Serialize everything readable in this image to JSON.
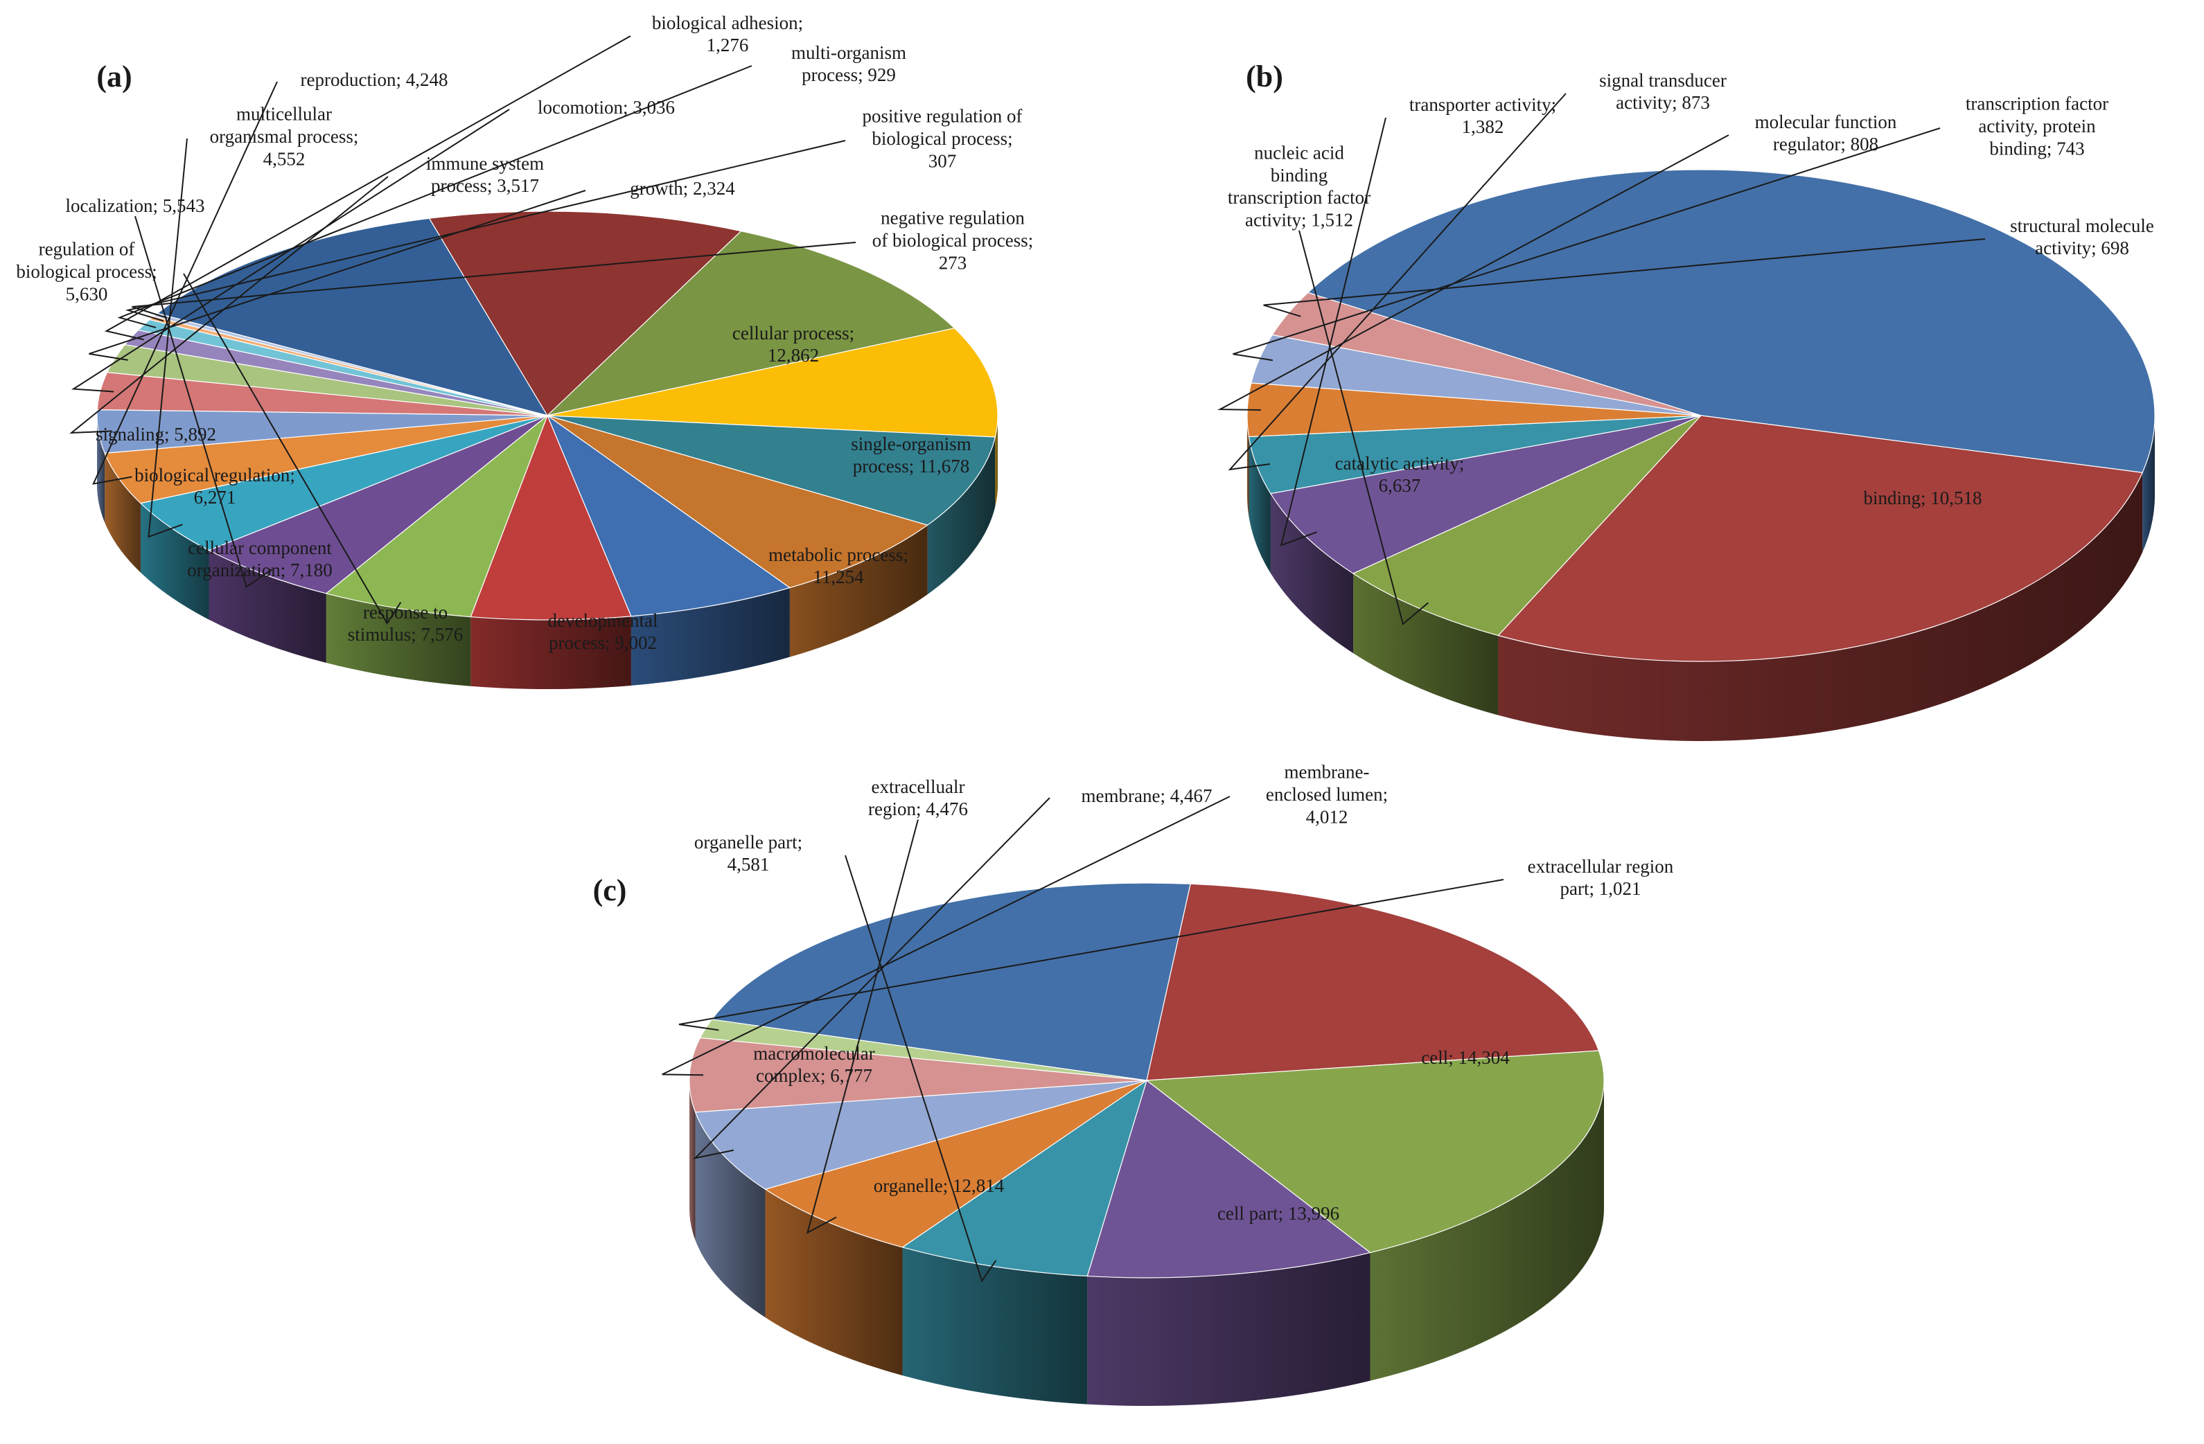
{
  "chart_data": [
    {
      "type": "pie",
      "panel_label": "(a)",
      "slices": [
        {
          "label": "cellular process",
          "value": 12862,
          "color": "#335f96"
        },
        {
          "label": "single-organism process",
          "value": 11678,
          "color": "#8e3431"
        },
        {
          "label": "metabolic process",
          "value": 11254,
          "color": "#7a9544"
        },
        {
          "label": "developmental process",
          "value": 9002,
          "color": "#fbbd05"
        },
        {
          "label": "response to stimulus",
          "value": 7576,
          "color": "#33808f"
        },
        {
          "label": "cellular component organization",
          "value": 7180,
          "color": "#c6752c"
        },
        {
          "label": "biological regulation",
          "value": 6271,
          "color": "#3f6fb1"
        },
        {
          "label": "signaling",
          "value": 5892,
          "color": "#bf3e3c"
        },
        {
          "label": "regulation of biological process",
          "value": 5630,
          "color": "#8db752"
        },
        {
          "label": "localization",
          "value": 5543,
          "color": "#6e4d92"
        },
        {
          "label": "multicellular organismal process",
          "value": 4552,
          "color": "#38a5c0"
        },
        {
          "label": "reproduction",
          "value": 4248,
          "color": "#e58b3c"
        },
        {
          "label": "immune system process",
          "value": 3517,
          "color": "#7f9bcd"
        },
        {
          "label": "locomotion",
          "value": 3036,
          "color": "#d47776"
        },
        {
          "label": "growth",
          "value": 2324,
          "color": "#a9c47f"
        },
        {
          "label": "biological adhesion",
          "value": 1276,
          "color": "#9685bd"
        },
        {
          "label": "multi-organism process",
          "value": 929,
          "color": "#72c3d6"
        },
        {
          "label": "positive regulation of biological process",
          "value": 307,
          "color": "#f3ae76"
        },
        {
          "label": "negative regulation of biological process",
          "value": 273,
          "color": "#b5c6e4"
        }
      ],
      "labels": [
        {
          "lines": [
            "cellular process;",
            "12,862"
          ]
        },
        {
          "lines": [
            "single-organism",
            "process; 11,678"
          ]
        },
        {
          "lines": [
            "metabolic process;",
            "11,254"
          ]
        },
        {
          "lines": [
            "developmental",
            "process; 9,002"
          ]
        },
        {
          "lines": [
            "response to",
            "stimulus; 7,576"
          ]
        },
        {
          "lines": [
            "cellular component",
            "organization; 7,180"
          ]
        },
        {
          "lines": [
            "biological regulation;",
            "6,271"
          ]
        },
        {
          "lines": [
            "signaling; 5,892"
          ]
        },
        {
          "lines": [
            "regulation of",
            "biological process;",
            "5,630"
          ]
        },
        {
          "lines": [
            "localization; 5,543"
          ]
        },
        {
          "lines": [
            "multicellular",
            "organismal process;",
            "4,552"
          ]
        },
        {
          "lines": [
            "reproduction; 4,248"
          ]
        },
        {
          "lines": [
            "immune system",
            "process; 3,517"
          ]
        },
        {
          "lines": [
            "locomotion; 3,036"
          ]
        },
        {
          "lines": [
            "growth; 2,324"
          ]
        },
        {
          "lines": [
            "biological adhesion;",
            "1,276"
          ]
        },
        {
          "lines": [
            "multi-organism",
            "process; 929"
          ]
        },
        {
          "lines": [
            "positive regulation of",
            "biological process;",
            "307"
          ]
        },
        {
          "lines": [
            "negative regulation",
            "of biological process;",
            "273"
          ]
        }
      ]
    },
    {
      "type": "pie",
      "panel_label": "(b)",
      "slices": [
        {
          "label": "binding",
          "value": 10518,
          "color": "#4370a8"
        },
        {
          "label": "catalytic activity",
          "value": 6637,
          "color": "#a5403d"
        },
        {
          "label": "nucleic acid binding transcription factor activity",
          "value": 1512,
          "color": "#86a447"
        },
        {
          "label": "transporter activity",
          "value": 1382,
          "color": "#6f5495"
        },
        {
          "label": "signal transducer activity",
          "value": 873,
          "color": "#3893a8"
        },
        {
          "label": "molecular function regulator",
          "value": 808,
          "color": "#da7e33"
        },
        {
          "label": "transcription factor activity, protein binding",
          "value": 743,
          "color": "#93a8d4"
        },
        {
          "label": "structural molecule activity",
          "value": 698,
          "color": "#d59291"
        }
      ],
      "labels": [
        {
          "lines": [
            "binding; 10,518"
          ]
        },
        {
          "lines": [
            "catalytic activity;",
            "6,637"
          ]
        },
        {
          "lines": [
            "nucleic acid",
            "binding",
            "transcription factor",
            "activity; 1,512"
          ]
        },
        {
          "lines": [
            "transporter activity;",
            "1,382"
          ]
        },
        {
          "lines": [
            "signal transducer",
            "activity; 873"
          ]
        },
        {
          "lines": [
            "molecular function",
            "regulator; 808"
          ]
        },
        {
          "lines": [
            "transcription factor",
            "activity, protein",
            "binding; 743"
          ]
        },
        {
          "lines": [
            "structural molecule",
            "activity; 698"
          ]
        }
      ]
    },
    {
      "type": "pie",
      "panel_label": "(c)",
      "slices": [
        {
          "label": "cell",
          "value": 14304,
          "color": "#4370a8"
        },
        {
          "label": "cell part",
          "value": 13996,
          "color": "#a5403d"
        },
        {
          "label": "organelle",
          "value": 12814,
          "color": "#87a64c"
        },
        {
          "label": "macromolecular complex",
          "value": 6777,
          "color": "#6f5495"
        },
        {
          "label": "organelle part",
          "value": 4581,
          "color": "#3893a8"
        },
        {
          "label": "extracellualr region",
          "value": 4476,
          "color": "#da7e33"
        },
        {
          "label": "membrane",
          "value": 4467,
          "color": "#93a8d4"
        },
        {
          "label": "membrane-enclosed lumen",
          "value": 4012,
          "color": "#d59291"
        },
        {
          "label": "extracellular region part",
          "value": 1021,
          "color": "#b6d08f"
        }
      ],
      "labels": [
        {
          "lines": [
            "cell; 14,304"
          ]
        },
        {
          "lines": [
            "cell part; 13,996"
          ]
        },
        {
          "lines": [
            "organelle; 12,814"
          ]
        },
        {
          "lines": [
            "macromolecular",
            "complex; 6,777"
          ]
        },
        {
          "lines": [
            "organelle part;",
            "4,581"
          ]
        },
        {
          "lines": [
            "extracellualr",
            "region; 4,476"
          ]
        },
        {
          "lines": [
            "membrane; 4,467"
          ]
        },
        {
          "lines": [
            "membrane-",
            "enclosed lumen;",
            "4,012"
          ]
        },
        {
          "lines": [
            "extracellular region",
            "part; 1,021"
          ]
        }
      ]
    }
  ]
}
